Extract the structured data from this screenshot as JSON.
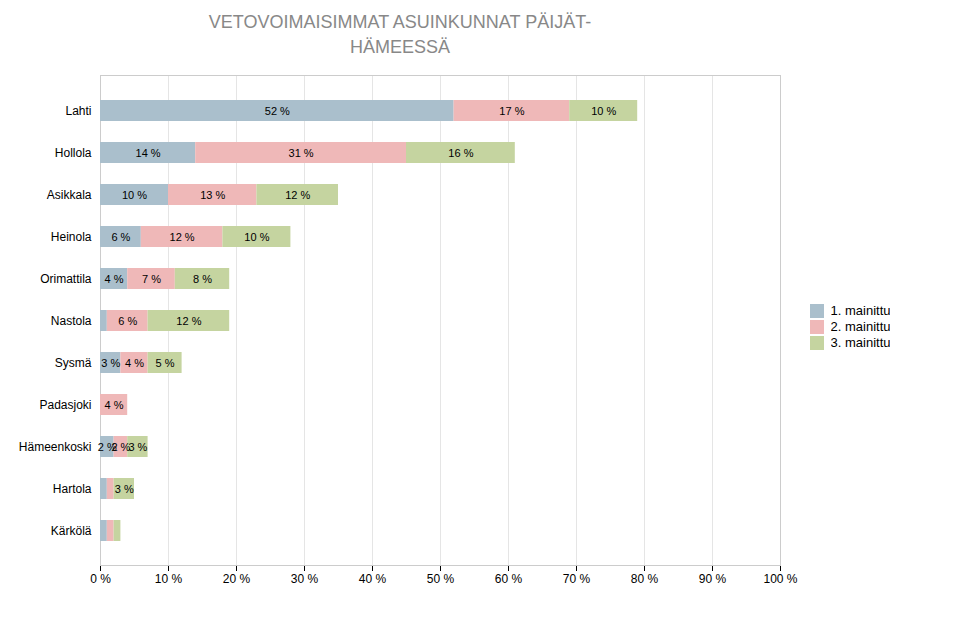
{
  "chart_data": {
    "type": "bar",
    "orientation": "horizontal",
    "stacked": true,
    "title": "VETOVOIMAISIMMAT ASUINKUNNAT PÄIJÄT-\nHÄMEESSÄ",
    "categories": [
      "Lahti",
      "Hollola",
      "Asikkala",
      "Heinola",
      "Orimattila",
      "Nastola",
      "Sysmä",
      "Padasjoki",
      "Hämeenkoski",
      "Hartola",
      "Kärkölä"
    ],
    "series": [
      {
        "name": "1. mainittu",
        "color": "#AABFCC",
        "values": [
          52,
          14,
          10,
          6,
          4,
          1,
          3,
          0,
          2,
          1,
          1
        ],
        "value_labels": [
          "52 %",
          "14 %",
          "10 %",
          "6 %",
          "4 %",
          null,
          "3 %",
          null,
          "2 %",
          null,
          null
        ]
      },
      {
        "name": "2. mainittu",
        "color": "#EFB8B8",
        "values": [
          17,
          31,
          13,
          12,
          7,
          6,
          4,
          4,
          2,
          1,
          1
        ],
        "value_labels": [
          "17 %",
          "31 %",
          "13 %",
          "12 %",
          "7 %",
          "6 %",
          "4 %",
          "4 %",
          "2 %",
          null,
          null
        ]
      },
      {
        "name": "3. mainittu",
        "color": "#C5D4A0",
        "values": [
          10,
          16,
          12,
          10,
          8,
          12,
          5,
          0,
          3,
          3,
          1
        ],
        "value_labels": [
          "10 %",
          "16 %",
          "12 %",
          "10 %",
          "8 %",
          "12 %",
          "5 %",
          null,
          "3 %",
          "3 %",
          null
        ]
      }
    ],
    "xlim": [
      0,
      100
    ],
    "xticks": [
      {
        "value": 0,
        "label": "0 %"
      },
      {
        "value": 10,
        "label": "10 %"
      },
      {
        "value": 20,
        "label": "20 %"
      },
      {
        "value": 30,
        "label": "30 %"
      },
      {
        "value": 40,
        "label": "40 %"
      },
      {
        "value": 50,
        "label": "50 %"
      },
      {
        "value": 60,
        "label": "60 %"
      },
      {
        "value": 70,
        "label": "70 %"
      },
      {
        "value": 80,
        "label": "80 %"
      },
      {
        "value": 90,
        "label": "90 %"
      },
      {
        "value": 100,
        "label": "100 %"
      }
    ],
    "grid": true,
    "data_labels": true,
    "legend": "right"
  }
}
